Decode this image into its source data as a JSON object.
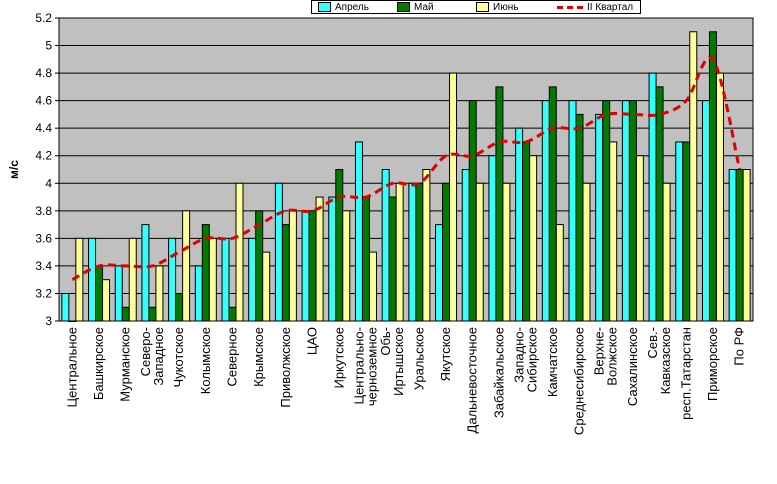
{
  "chart_data": {
    "type": "bar",
    "title": "",
    "xlabel": "",
    "ylabel": "м/с",
    "ylim": [
      3,
      5.2
    ],
    "yticks": [
      3,
      3.2,
      3.4,
      3.6,
      3.8,
      4,
      4.2,
      4.4,
      4.6,
      4.8,
      5,
      5.2
    ],
    "ytick_labels": [
      "3",
      "3.2",
      "3.4",
      "3.6",
      "3.8",
      "4",
      "4.2",
      "4.4",
      "4.6",
      "4.8",
      "5",
      "5.2"
    ],
    "grid": "horizontal",
    "legend_position": "top",
    "categories": [
      "Центральное",
      "Башкирское",
      "Мурманское",
      "Северо-Западное",
      "Чукотское",
      "Колымское",
      "Северное",
      "Крымское",
      "Приволжское",
      "ЦАО",
      "Иркутское",
      "Центрально-черноземное",
      "Обь-Иртышское",
      "Уральское",
      "Якутское",
      "Дальневосточное",
      "Забайкальское",
      "Западно-Сибирское",
      "Камчатское",
      "Среднесибирское",
      "Верхне-Волжское",
      "Сахалинское",
      "Сев.-Кавказское",
      "респ.Татарстан",
      "Приморское",
      "По РФ"
    ],
    "category_labels": [
      [
        "Центральное"
      ],
      [
        "Башкирское"
      ],
      [
        "Мурманское"
      ],
      [
        "Северо-",
        "Западное"
      ],
      [
        "Чукотское"
      ],
      [
        "Колымское"
      ],
      [
        "Северное"
      ],
      [
        "Крымское"
      ],
      [
        "Приволжское"
      ],
      [
        "ЦАО"
      ],
      [
        "Иркутское"
      ],
      [
        "Центрально-",
        "черноземное"
      ],
      [
        "Обь-",
        "Иртышское"
      ],
      [
        "Уральское"
      ],
      [
        "Якутское"
      ],
      [
        "Дальневосточное"
      ],
      [
        "Забайкальское"
      ],
      [
        "Западно-",
        "Сибирское"
      ],
      [
        "Камчатское"
      ],
      [
        "Среднесибирское"
      ],
      [
        "Верхне-",
        "Волжское"
      ],
      [
        "Сахалинское"
      ],
      [
        "Сев.-",
        "Кавказское"
      ],
      [
        "респ.Татарстан"
      ],
      [
        "Приморское"
      ],
      [
        "По РФ"
      ]
    ],
    "series": [
      {
        "name": "Апрель",
        "kind": "bar",
        "color": "#33ffff",
        "values": [
          3.2,
          3.6,
          3.4,
          3.7,
          3.6,
          3.4,
          3.6,
          3.6,
          4.0,
          3.8,
          3.9,
          4.3,
          4.1,
          4.0,
          3.7,
          4.1,
          4.2,
          4.4,
          4.6,
          4.6,
          4.5,
          4.6,
          4.8,
          4.3,
          4.6,
          4.1
        ]
      },
      {
        "name": "Май",
        "kind": "bar",
        "color": "#007a00",
        "values": [
          3.0,
          3.4,
          3.1,
          3.1,
          3.2,
          3.7,
          3.1,
          3.8,
          3.7,
          3.8,
          4.1,
          3.9,
          3.9,
          4.0,
          4.0,
          4.6,
          4.7,
          4.3,
          4.7,
          4.5,
          4.6,
          4.6,
          4.7,
          4.3,
          5.1,
          4.1
        ]
      },
      {
        "name": "Июнь",
        "kind": "bar",
        "color": "#ffff99",
        "values": [
          3.6,
          3.3,
          3.6,
          3.4,
          3.8,
          3.6,
          4.0,
          3.5,
          3.8,
          3.9,
          3.8,
          3.5,
          4.0,
          4.1,
          4.8,
          4.0,
          4.0,
          4.2,
          3.7,
          4.0,
          4.3,
          4.2,
          4.0,
          5.1,
          4.8,
          4.1
        ]
      },
      {
        "name": "II Квартал",
        "kind": "line",
        "color": "#e00000",
        "values": [
          3.3,
          3.4,
          3.4,
          3.4,
          3.5,
          3.6,
          3.6,
          3.7,
          3.8,
          3.8,
          3.9,
          3.9,
          4.0,
          4.0,
          4.2,
          4.2,
          4.3,
          4.3,
          4.4,
          4.4,
          4.5,
          4.5,
          4.5,
          4.6,
          4.9,
          4.1
        ]
      }
    ]
  },
  "colors": {
    "plot_background": "#c0c0c0",
    "gridline": "#000000",
    "bar_outline": "#000000"
  }
}
